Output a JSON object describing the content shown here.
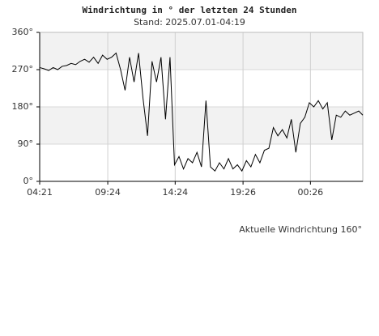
{
  "chart_data": {
    "type": "line",
    "title": "Windrichtung in ° der letzten 24 Stunden",
    "subtitle": "Stand: 2025.07.01-04:19",
    "annotation": "Aktuelle Windrichtung 160°",
    "color": "#000000",
    "grid": true,
    "alternate_bands": true,
    "x": [
      "04:21",
      "04:41",
      "05:01",
      "05:21",
      "05:41",
      "06:01",
      "06:21",
      "06:41",
      "07:01",
      "07:21",
      "07:41",
      "08:01",
      "08:21",
      "08:41",
      "09:01",
      "09:21",
      "09:41",
      "10:01",
      "10:21",
      "10:41",
      "11:01",
      "11:21",
      "11:41",
      "12:01",
      "12:21",
      "12:41",
      "13:01",
      "13:21",
      "13:41",
      "14:01",
      "14:21",
      "14:41",
      "15:01",
      "15:21",
      "15:41",
      "16:01",
      "16:21",
      "16:41",
      "17:01",
      "17:21",
      "17:41",
      "18:01",
      "18:21",
      "18:41",
      "19:01",
      "19:21",
      "19:41",
      "20:01",
      "20:21",
      "20:41",
      "21:01",
      "21:21",
      "21:41",
      "22:01",
      "22:21",
      "22:41",
      "23:01",
      "23:21",
      "23:41",
      "00:01",
      "00:21",
      "00:41",
      "01:01",
      "01:21",
      "01:41",
      "02:01",
      "02:21",
      "02:41",
      "03:01",
      "03:21",
      "03:41",
      "04:01",
      "04:19"
    ],
    "values": [
      275,
      272,
      268,
      275,
      270,
      278,
      280,
      285,
      282,
      290,
      295,
      288,
      300,
      285,
      305,
      295,
      300,
      310,
      270,
      220,
      300,
      240,
      310,
      200,
      110,
      290,
      240,
      300,
      150,
      300,
      40,
      60,
      30,
      55,
      45,
      70,
      35,
      195,
      35,
      25,
      45,
      30,
      55,
      30,
      40,
      25,
      50,
      35,
      65,
      45,
      75,
      80,
      130,
      110,
      125,
      105,
      150,
      70,
      140,
      155,
      190,
      180,
      195,
      175,
      190,
      100,
      160,
      155,
      170,
      160,
      165,
      170,
      160
    ],
    "xlim": [
      "04:21",
      "04:19"
    ],
    "xticks": [
      "04:21",
      "09:24",
      "14:24",
      "19:26",
      "00:26"
    ],
    "ylim": [
      0,
      360
    ],
    "yticks": [
      {
        "value": 0,
        "label": "0°"
      },
      {
        "value": 90,
        "label": "90°"
      },
      {
        "value": 180,
        "label": "180°"
      },
      {
        "value": 270,
        "label": "270°"
      },
      {
        "value": 360,
        "label": "360°"
      }
    ]
  }
}
